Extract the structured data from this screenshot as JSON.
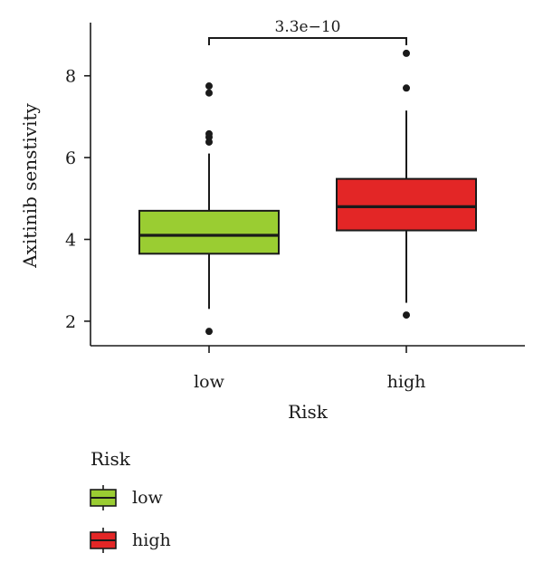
{
  "chart_data": {
    "type": "boxplot",
    "xlabel": "Risk",
    "ylabel": "Axitinib senstivity",
    "ylim": [
      1.4,
      9.3
    ],
    "yticks": [
      2,
      4,
      6,
      8
    ],
    "groups": [
      {
        "category": "low",
        "color": "#9acd32",
        "q1": 3.65,
        "median": 4.1,
        "q3": 4.7,
        "whisker_low": 2.3,
        "whisker_high": 6.1,
        "outliers": [
          1.75,
          6.38,
          6.5,
          6.58,
          7.58,
          7.75
        ]
      },
      {
        "category": "high",
        "color": "#e32626",
        "q1": 4.22,
        "median": 4.8,
        "q3": 5.48,
        "whisker_low": 2.45,
        "whisker_high": 7.15,
        "outliers": [
          2.15,
          7.7,
          8.55
        ]
      }
    ],
    "comparison": {
      "label": "3.3e−10",
      "between": [
        "low",
        "high"
      ]
    },
    "legend": {
      "title": "Risk",
      "entries": [
        {
          "label": "low",
          "color": "#9acd32"
        },
        {
          "label": "high",
          "color": "#e32626"
        }
      ]
    }
  }
}
